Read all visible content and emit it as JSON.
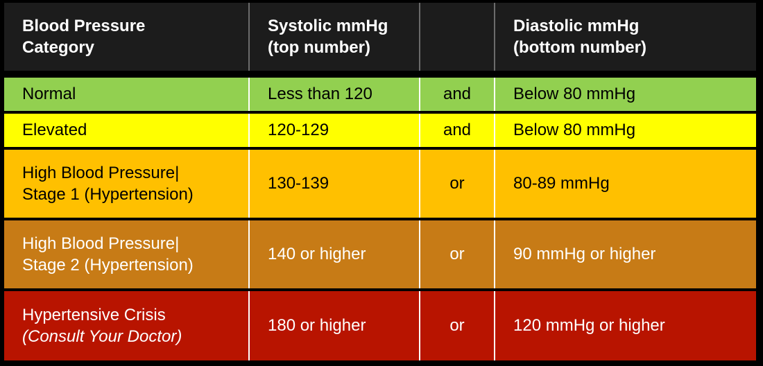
{
  "header": {
    "category_line1": "Blood Pressure",
    "category_line2": "Category",
    "systolic_line1": "Systolic mmHg",
    "systolic_line2": "(top number)",
    "conjunction": "",
    "diastolic_line1": "Diastolic mmHg",
    "diastolic_line2": "(bottom number)"
  },
  "rows": [
    {
      "category_line1": "Normal",
      "category_line2": "",
      "systolic": "Less than 120",
      "conjunction": "and",
      "diastolic": "Below 80 mmHg",
      "color": "#92d050"
    },
    {
      "category_line1": "Elevated",
      "category_line2": "",
      "systolic": "120-129",
      "conjunction": "and",
      "diastolic": "Below 80 mmHg",
      "color": "#ffff00"
    },
    {
      "category_line1": "High Blood Pressure|",
      "category_line2": "Stage 1 (Hypertension)",
      "systolic": "130-139",
      "conjunction": "or",
      "diastolic": "80-89 mmHg",
      "color": "#ffc000"
    },
    {
      "category_line1": "High Blood Pressure|",
      "category_line2": "Stage 2 (Hypertension)",
      "systolic": "140 or higher",
      "conjunction": "or",
      "diastolic": "90 mmHg or higher",
      "color": "#c77b16"
    },
    {
      "category_line1": "Hypertensive Crisis",
      "category_line2": "(Consult Your Doctor)",
      "systolic": "180 or higher",
      "conjunction": "or",
      "diastolic": "120 mmHg or higher",
      "color": "#b81400"
    }
  ]
}
